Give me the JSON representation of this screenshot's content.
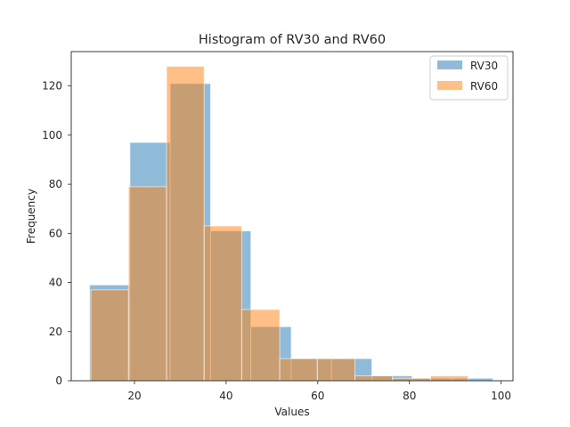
{
  "chart_data": {
    "type": "bar",
    "subtype": "histogram",
    "title": "Histogram of RV30 and RV60",
    "xlabel": "Values",
    "ylabel": "Frequency",
    "xlim": [
      6.2,
      102.6
    ],
    "ylim": [
      0,
      134
    ],
    "xticks": [
      20,
      40,
      60,
      80,
      100
    ],
    "yticks": [
      0,
      20,
      40,
      60,
      80,
      100,
      120
    ],
    "grid": false,
    "legend_position": "top-right",
    "series": [
      {
        "name": "RV30",
        "color": "#1f77b4",
        "opacity": 0.5,
        "bins": [
          {
            "x0": 10.2,
            "x1": 19.0,
            "count": 39
          },
          {
            "x0": 19.0,
            "x1": 27.8,
            "count": 97
          },
          {
            "x0": 27.8,
            "x1": 36.6,
            "count": 121
          },
          {
            "x0": 36.6,
            "x1": 45.4,
            "count": 61
          },
          {
            "x0": 45.4,
            "x1": 54.2,
            "count": 22
          },
          {
            "x0": 54.2,
            "x1": 63.0,
            "count": 9
          },
          {
            "x0": 63.0,
            "x1": 71.8,
            "count": 9
          },
          {
            "x0": 71.8,
            "x1": 80.6,
            "count": 2
          },
          {
            "x0": 80.6,
            "x1": 89.4,
            "count": 1
          },
          {
            "x0": 89.4,
            "x1": 98.2,
            "count": 1
          }
        ]
      },
      {
        "name": "RV60",
        "color": "#ff7f0e",
        "opacity": 0.5,
        "bins": [
          {
            "x0": 10.5,
            "x1": 18.7,
            "count": 37
          },
          {
            "x0": 18.7,
            "x1": 27.0,
            "count": 79
          },
          {
            "x0": 27.0,
            "x1": 35.2,
            "count": 128
          },
          {
            "x0": 35.2,
            "x1": 43.4,
            "count": 63
          },
          {
            "x0": 43.4,
            "x1": 51.7,
            "count": 29
          },
          {
            "x0": 51.7,
            "x1": 59.9,
            "count": 9
          },
          {
            "x0": 59.9,
            "x1": 68.1,
            "count": 9
          },
          {
            "x0": 68.1,
            "x1": 76.3,
            "count": 2
          },
          {
            "x0": 76.3,
            "x1": 84.6,
            "count": 1
          },
          {
            "x0": 84.6,
            "x1": 92.8,
            "count": 2
          }
        ]
      }
    ]
  }
}
